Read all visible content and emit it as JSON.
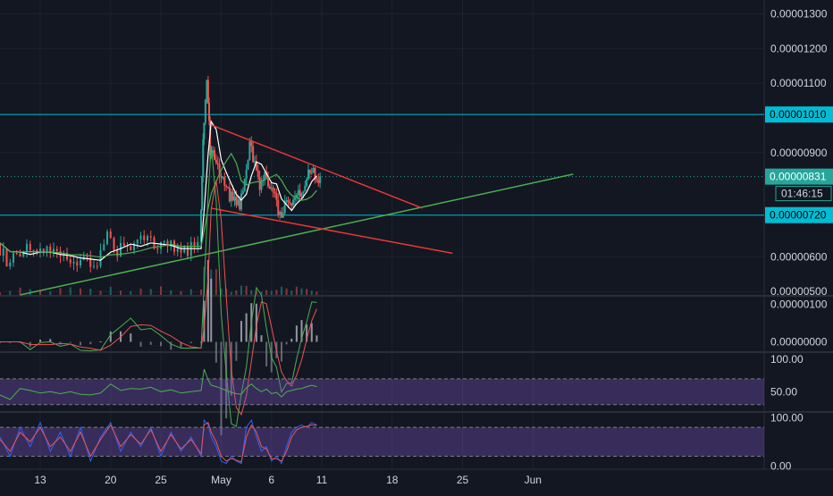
{
  "theme": {
    "background": "#131722",
    "grid": "#1e2230",
    "axis_text": "#d1d4dc",
    "up": "#26a69a",
    "down": "#ef5350",
    "cyan": "#00bcd4",
    "trend_green": "#4caf50",
    "trend_red": "#e53935",
    "ma_white": "#ffffff",
    "ma_green": "#4caf50",
    "rsi_band": "#7e57c2",
    "rsi_line": "#4caf50",
    "stoch_k": "#2962ff",
    "stoch_d": "#ef5350"
  },
  "chart_data": {
    "type": "candlestick",
    "price_axis": {
      "ticks": [
        {
          "value": 1.3e-05,
          "label": "0.00001300"
        },
        {
          "value": 1.2e-05,
          "label": "0.00001200"
        },
        {
          "value": 1.1e-05,
          "label": "0.00001100"
        },
        {
          "value": 9e-06,
          "label": "0.00000900"
        },
        {
          "value": 6e-06,
          "label": "0.00000600"
        },
        {
          "value": 5e-06,
          "label": "0.00000500"
        }
      ],
      "range": [
        4.9e-06,
        1.34e-05
      ]
    },
    "horizontal_levels": [
      {
        "value": 1.01e-05,
        "label": "0.00001010",
        "color": "#00bcd4",
        "style": "solid"
      },
      {
        "value": 7.2e-06,
        "label": "0.00000720",
        "color": "#00bcd4",
        "style": "solid"
      },
      {
        "value": 8.31e-06,
        "label": "0.00000831",
        "color": "#26a69a",
        "style": "dotted"
      }
    ],
    "last_price": {
      "label": "0.00000831",
      "countdown": "01:46:15"
    },
    "x_axis": {
      "day_range": [
        0,
        76
      ],
      "ticks": [
        {
          "day": 4,
          "label": "13"
        },
        {
          "day": 11,
          "label": "20"
        },
        {
          "day": 16,
          "label": "25"
        },
        {
          "day": 22,
          "label": "May"
        },
        {
          "day": 27,
          "label": "6"
        },
        {
          "day": 32,
          "label": "11"
        },
        {
          "day": 39,
          "label": "18"
        },
        {
          "day": 46,
          "label": "25"
        },
        {
          "day": 53,
          "label": "Jun"
        }
      ]
    },
    "trendlines": [
      {
        "color": "#4caf50",
        "from": {
          "day": 2,
          "value": 4.9e-06
        },
        "to": {
          "day": 57,
          "value": 8.38e-06
        }
      },
      {
        "color": "#e53935",
        "from": {
          "day": 21,
          "value": 9.8e-06
        },
        "to": {
          "day": 42,
          "value": 7.4e-06
        }
      },
      {
        "color": "#e53935",
        "from": {
          "day": 21,
          "value": 7.4e-06
        },
        "to": {
          "day": 45,
          "value": 6.1e-06
        }
      }
    ],
    "price_series_days": [
      0,
      1,
      2,
      3,
      4,
      5,
      6,
      7,
      8,
      9,
      10,
      11,
      12,
      13,
      14,
      15,
      16,
      17,
      18,
      19,
      20,
      20.3,
      20.7,
      21,
      21.5,
      22,
      22.5,
      23,
      23.5,
      24,
      24.5,
      25,
      25.5,
      26,
      26.5,
      27,
      27.5,
      28,
      28.5,
      29,
      29.5,
      30,
      30.5,
      31,
      31.5
    ],
    "price_series": [
      6.4e-06,
      5.9e-06,
      6.1e-06,
      6.2e-06,
      6.1e-06,
      6.1e-06,
      6e-06,
      6e-06,
      5.9e-06,
      5.9e-06,
      5.9e-06,
      6.6e-06,
      6.2e-06,
      6.3e-06,
      6.4e-06,
      6.5e-06,
      6.2e-06,
      6.3e-06,
      6.2e-06,
      6.2e-06,
      6.3e-06,
      9.5e-06,
      1.11e-05,
      9.1e-06,
      8.8e-06,
      8.5e-06,
      8e-06,
      7.8e-06,
      7.6e-06,
      7.5e-06,
      8.3e-06,
      9.2e-06,
      8.7e-06,
      8.1e-06,
      8.4e-06,
      7.9e-06,
      8e-06,
      7.1e-06,
      7.4e-06,
      7.5e-06,
      7.7e-06,
      7.8e-06,
      8.1e-06,
      8.6e-06,
      8.3e-06
    ],
    "ma_fast_color": "#ffffff",
    "ma_slow_color": "#4caf50",
    "macd": {
      "ticks": [
        {
          "value": 1e-06,
          "label": "0.00000100"
        },
        {
          "value": 0.0,
          "label": "0.00000000"
        }
      ],
      "range": [
        -2.5e-07,
        1.2e-06
      ]
    },
    "rsi": {
      "ticks": [
        {
          "value": 100,
          "label": "100.00"
        },
        {
          "value": 50,
          "label": "50.00"
        }
      ],
      "range": [
        20,
        110
      ],
      "band": [
        30,
        70
      ],
      "values": [
        45,
        38,
        55,
        52,
        48,
        50,
        47,
        50,
        46,
        45,
        48,
        62,
        52,
        55,
        54,
        57,
        50,
        53,
        48,
        50,
        52,
        85,
        68,
        60,
        58,
        55,
        52,
        49,
        47,
        46,
        56,
        62,
        55,
        50,
        54,
        47,
        49,
        42,
        50,
        52,
        54,
        55,
        58,
        60,
        58
      ]
    },
    "stoch": {
      "ticks": [
        {
          "value": 100,
          "label": "100.00"
        },
        {
          "value": 0,
          "label": "0.00"
        }
      ],
      "range": [
        -5,
        110
      ],
      "band": [
        20,
        80
      ],
      "k": [
        60,
        20,
        80,
        40,
        90,
        30,
        70,
        20,
        80,
        10,
        60,
        90,
        30,
        70,
        40,
        80,
        20,
        70,
        30,
        60,
        20,
        95,
        85,
        60,
        40,
        10,
        5,
        20,
        10,
        5,
        80,
        95,
        60,
        30,
        40,
        10,
        20,
        5,
        40,
        70,
        80,
        85,
        80,
        90,
        85
      ],
      "d": [
        55,
        30,
        70,
        50,
        80,
        40,
        60,
        30,
        70,
        20,
        55,
        85,
        40,
        65,
        45,
        75,
        30,
        65,
        35,
        55,
        25,
        85,
        90,
        70,
        50,
        20,
        10,
        15,
        12,
        8,
        60,
        85,
        70,
        40,
        35,
        15,
        15,
        10,
        30,
        60,
        75,
        80,
        82,
        85,
        84
      ]
    }
  }
}
